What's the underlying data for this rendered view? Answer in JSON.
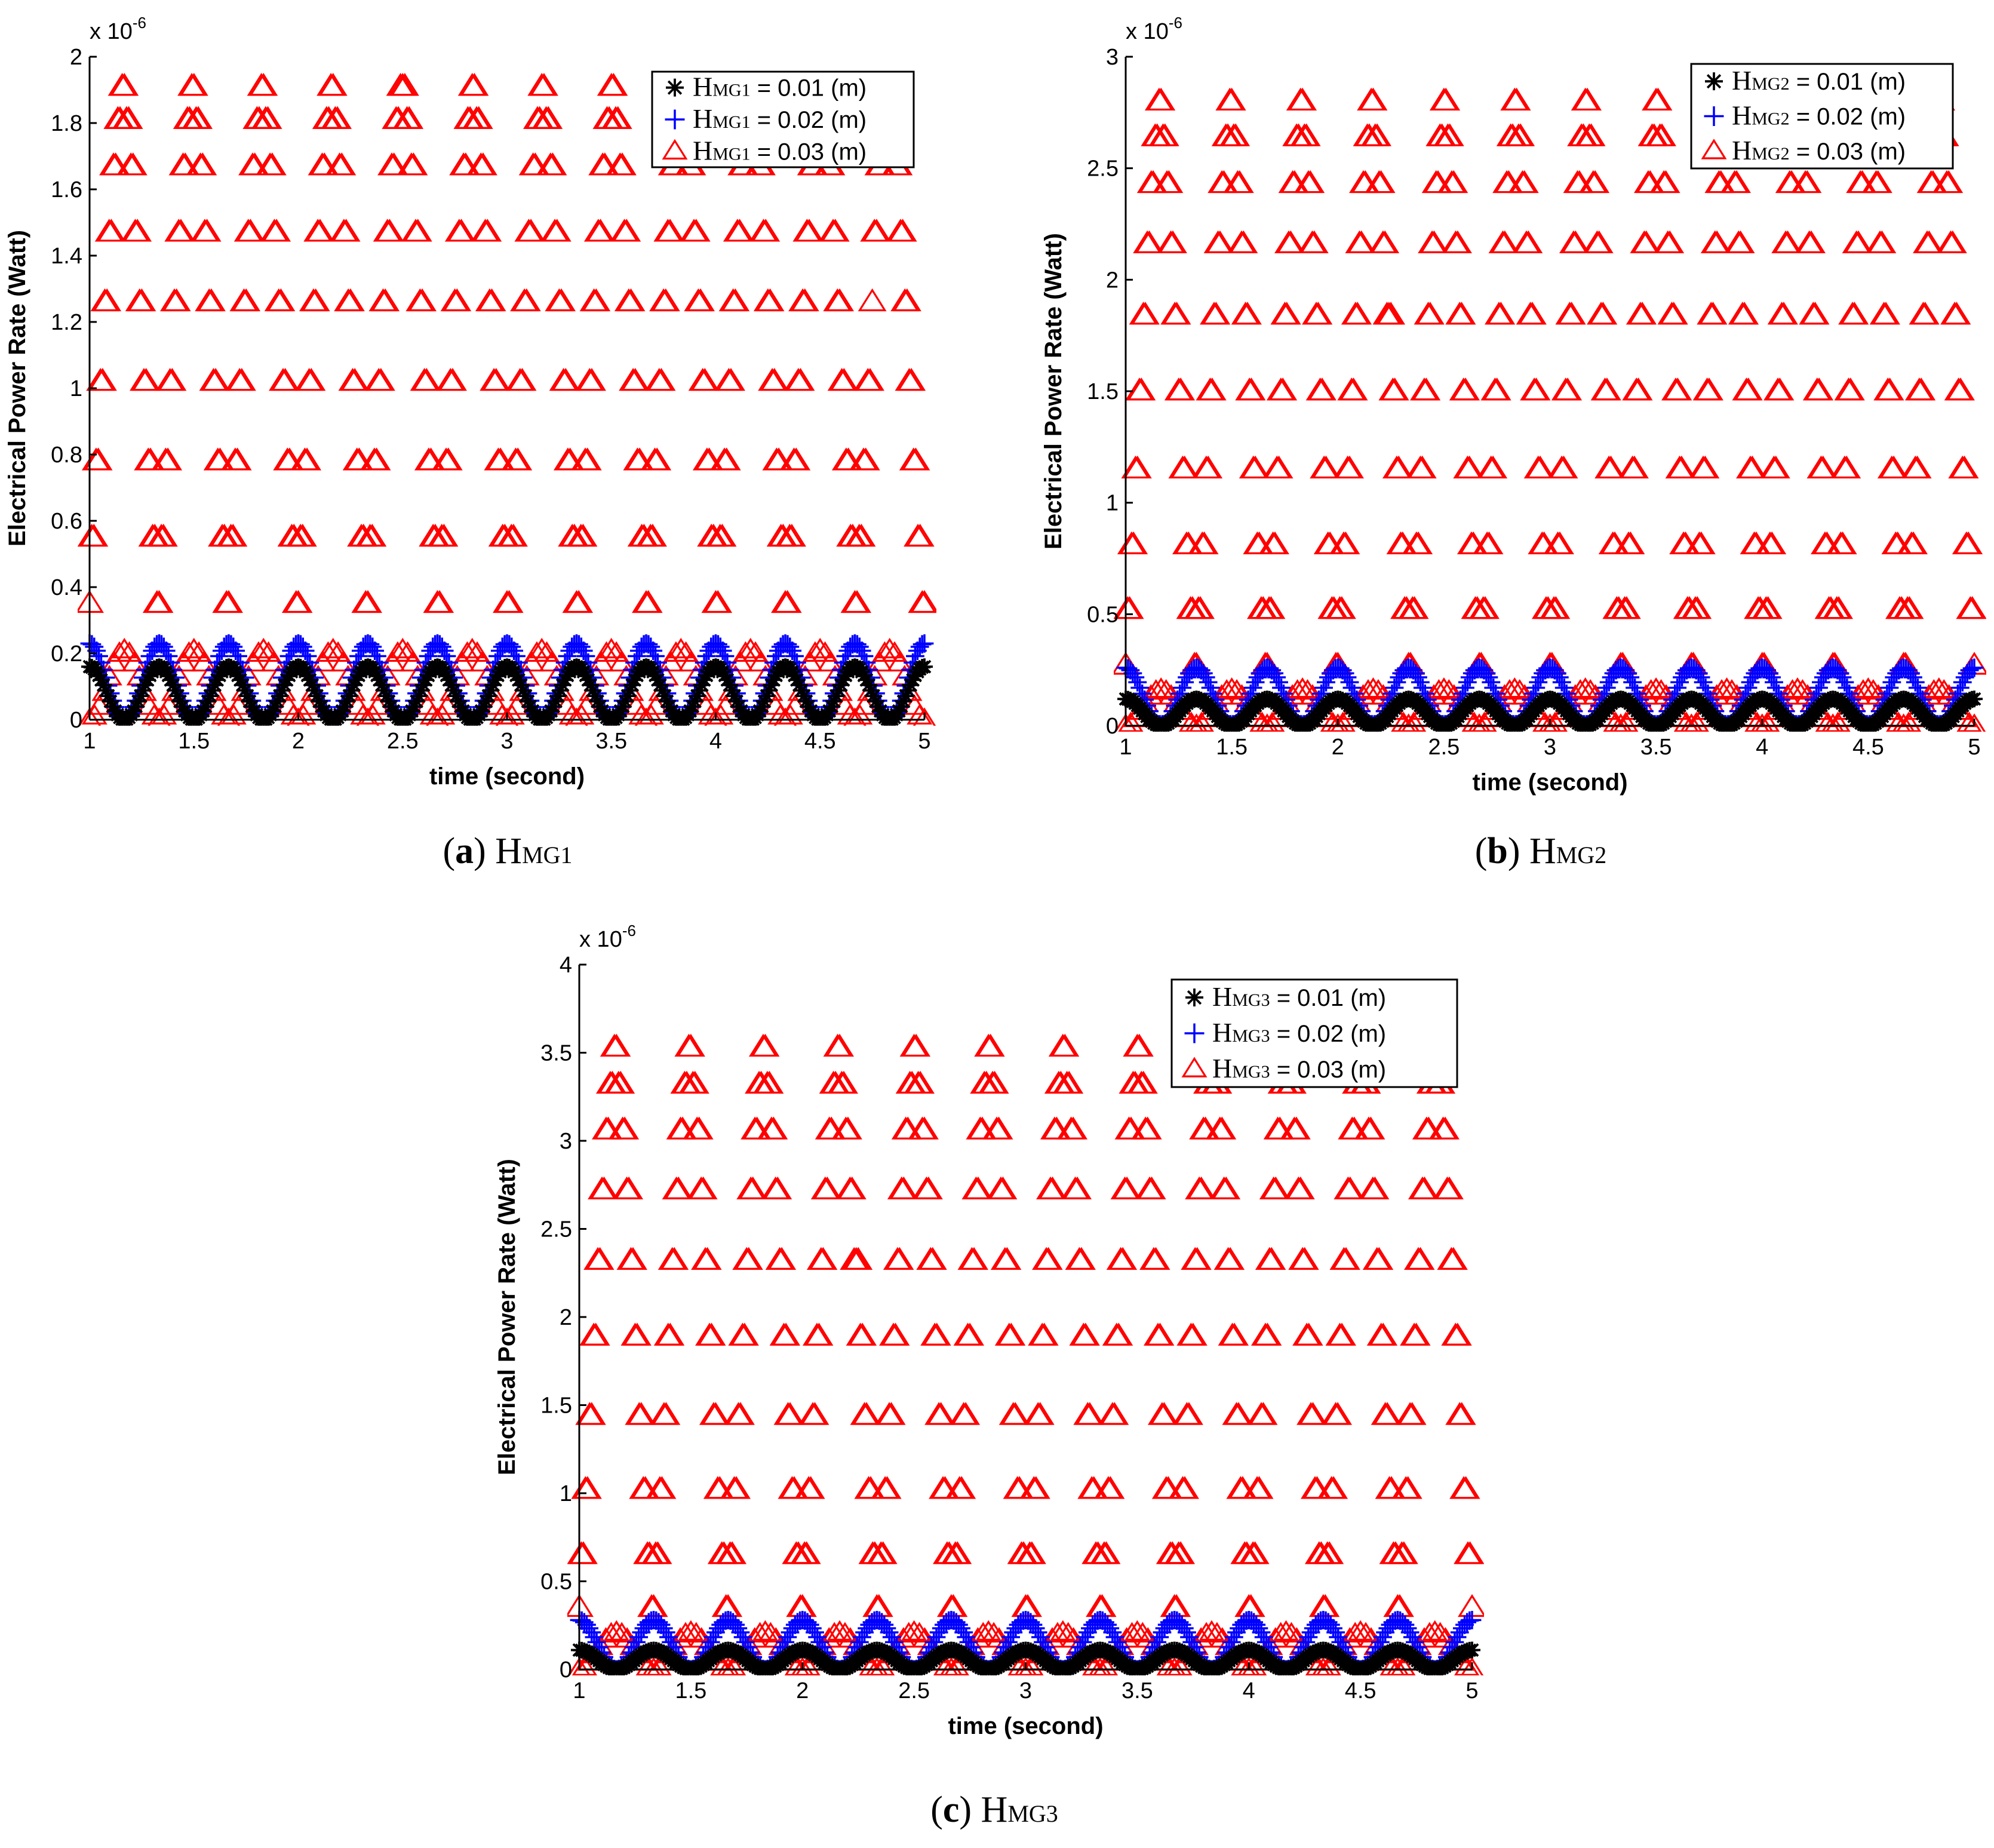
{
  "panels": [
    {
      "caption": {
        "letter": "a",
        "text": "H",
        "sub": "MG1"
      },
      "chart_data": {
        "type": "scatter",
        "xlabel": "time (second)",
        "ylabel": "Electrical Power Rate (Watt)",
        "exponent": {
          "base": "x 10",
          "power": "-6"
        },
        "xlim": [
          1,
          5
        ],
        "ylim": [
          0,
          2
        ],
        "xticks": [
          "1",
          "1.5",
          "2",
          "2.5",
          "3",
          "3.5",
          "4",
          "4.5",
          "5"
        ],
        "yticks": [
          "0",
          "0.2",
          "0.4",
          "0.6",
          "0.8",
          "1",
          "1.2",
          "1.4",
          "1.6",
          "1.8",
          "2"
        ],
        "frequency_hz": 3,
        "legend_position": "top-right",
        "series": [
          {
            "label_main": "H",
            "label_sub": "MG1",
            "label_rest": " = 0.01 (m)",
            "marker": "asterisk",
            "color": "#000000",
            "peak": 0.16
          },
          {
            "label_main": "H",
            "label_sub": "MG1",
            "label_rest": " = 0.02 (m)",
            "marker": "plus",
            "color": "#0000ff",
            "peak": 0.23
          },
          {
            "label_main": "H",
            "label_sub": "MG1",
            "label_rest": " = 0.03 (m)",
            "marker": "triangle",
            "color": "#ff0000",
            "peak": 1.91,
            "bands": [
              0.35,
              0.55,
              0.78,
              1.02,
              1.26,
              1.47,
              1.67,
              1.81,
              1.91
            ]
          }
        ]
      }
    },
    {
      "caption": {
        "letter": "b",
        "text": "H",
        "sub": "MG2"
      },
      "chart_data": {
        "type": "scatter",
        "xlabel": "time (second)",
        "ylabel": "Electrical Power Rate (Watt)",
        "exponent": {
          "base": "x 10",
          "power": "-6"
        },
        "xlim": [
          1,
          5
        ],
        "ylim": [
          0,
          3
        ],
        "xticks": [
          "1",
          "1.5",
          "2",
          "2.5",
          "3",
          "3.5",
          "4",
          "4.5",
          "5"
        ],
        "yticks": [
          "0",
          "0.5",
          "1",
          "1.5",
          "2",
          "2.5",
          "3"
        ],
        "frequency_hz": 3,
        "legend_position": "top-right",
        "series": [
          {
            "label_main": "H",
            "label_sub": "MG2",
            "label_rest": " = 0.01 (m)",
            "marker": "asterisk",
            "color": "#000000",
            "peak": 0.12
          },
          {
            "label_main": "H",
            "label_sub": "MG2",
            "label_rest": " = 0.02 (m)",
            "marker": "plus",
            "color": "#0000ff",
            "peak": 0.26
          },
          {
            "label_main": "H",
            "label_sub": "MG2",
            "label_rest": " = 0.03 (m)",
            "marker": "triangle",
            "color": "#ff0000",
            "peak": 2.8,
            "bands": [
              0.27,
              0.52,
              0.81,
              1.15,
              1.5,
              1.84,
              2.16,
              2.43,
              2.64,
              2.8
            ]
          }
        ]
      }
    },
    {
      "caption": {
        "letter": "c",
        "text": "H",
        "sub": "MG3"
      },
      "chart_data": {
        "type": "scatter",
        "xlabel": "time (second)",
        "ylabel": "Electrical Power Rate (Watt)",
        "exponent": {
          "base": "x 10",
          "power": "-6"
        },
        "xlim": [
          1,
          5
        ],
        "ylim": [
          0,
          4
        ],
        "xticks": [
          "1",
          "1.5",
          "2",
          "2.5",
          "3",
          "3.5",
          "4",
          "4.5",
          "5"
        ],
        "yticks": [
          "0",
          "0.5",
          "1",
          "1.5",
          "2",
          "2.5",
          "3",
          "3.5",
          "4"
        ],
        "frequency_hz": 3,
        "legend_position": "top-right",
        "series": [
          {
            "label_main": "H",
            "label_sub": "MG3",
            "label_rest": "  = 0.01 (m)",
            "marker": "asterisk",
            "color": "#000000",
            "peak": 0.11
          },
          {
            "label_main": "H",
            "label_sub": "MG3",
            "label_rest": "  = 0.02 (m)",
            "marker": "plus",
            "color": "#0000ff",
            "peak": 0.28
          },
          {
            "label_main": "H",
            "label_sub": "MG3",
            "label_rest": "  = 0.03 (m)",
            "marker": "triangle",
            "color": "#ff0000",
            "peak": 3.53,
            "bands": [
              0.35,
              0.65,
              1.02,
              1.44,
              1.89,
              2.32,
              2.72,
              3.06,
              3.32,
              3.53
            ]
          }
        ]
      }
    }
  ]
}
